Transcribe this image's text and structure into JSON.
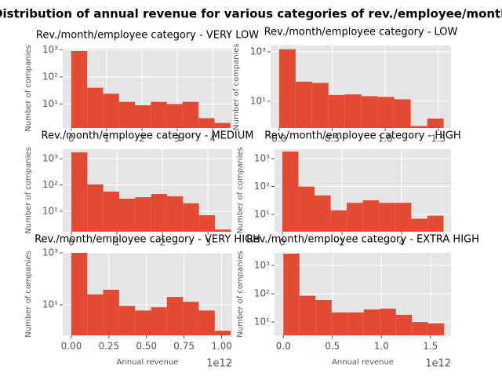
{
  "suptitle": "Distribution of annual revenue for various categories of rev./employee/month",
  "chart_data": [
    {
      "type": "histogram",
      "title": "Rev./month/employee category - VERY LOW",
      "color": "#e24a33",
      "grid": true,
      "log_y": true,
      "ylabel": "Number of companies",
      "bins": [
        0,
        0.45,
        0.9,
        1.35,
        1.8,
        2.25,
        2.7,
        3.15,
        3.6,
        4.05,
        4.5
      ],
      "values": [
        900,
        40,
        24,
        12,
        9,
        12,
        10,
        12,
        3,
        2
      ],
      "xlim": [
        -0.24,
        4.55
      ],
      "xticks": [
        0,
        1,
        2,
        3,
        4
      ],
      "ylim": [
        1.3,
        1100
      ],
      "yticks": [
        {
          "value": 10,
          "label": "10¹"
        },
        {
          "value": 100,
          "label": "10²"
        },
        {
          "value": 1000,
          "label": "10³"
        }
      ]
    },
    {
      "type": "histogram",
      "title": "Rev./month/employee category - LOW",
      "color": "#e24a33",
      "grid": true,
      "log_y": true,
      "ylabel": "Number of companies",
      "bins": [
        0,
        0.155,
        0.31,
        0.465,
        0.62,
        0.775,
        0.93,
        1.085,
        1.24,
        1.395,
        1.55
      ],
      "values": [
        1260,
        62,
        55,
        18,
        19,
        16,
        15,
        12,
        1,
        2
      ],
      "xlim": [
        -0.08,
        1.62
      ],
      "xticks": [
        {
          "value": 0,
          "label": "0.0"
        },
        0.5,
        {
          "value": 1,
          "label": "1.0"
        },
        1.5
      ],
      "ylim": [
        0.83,
        1780
      ],
      "yticks": [
        {
          "value": 10,
          "label": "10¹"
        },
        {
          "value": 1000,
          "label": "10³"
        }
      ]
    },
    {
      "type": "histogram",
      "title": "Rev./month/employee category - MEDIUM",
      "color": "#e24a33",
      "grid": true,
      "log_y": true,
      "ylabel": "Number of companies",
      "bins": [
        0,
        0.35,
        0.7,
        1.05,
        1.4,
        1.75,
        2.1,
        2.45,
        2.8,
        3.15,
        3.5
      ],
      "values": [
        1740,
        105,
        56,
        30,
        34,
        45,
        37,
        20,
        7,
        2
      ],
      "xlim": [
        -0.19,
        3.53
      ],
      "xticks": [
        0,
        1,
        2,
        3
      ],
      "ylim": [
        1.66,
        2290
      ],
      "yticks": [
        {
          "value": 10,
          "label": "10¹"
        },
        {
          "value": 100,
          "label": "10²"
        },
        {
          "value": 1000,
          "label": "10³"
        }
      ]
    },
    {
      "type": "histogram",
      "title": "Rev./month/employee category - HIGH",
      "color": "#e24a33",
      "grid": true,
      "log_y": true,
      "ylabel": "Number of companies",
      "bins": [
        0,
        0.54,
        1.08,
        1.62,
        2.16,
        2.7,
        3.24,
        3.78,
        4.32,
        4.86,
        5.4
      ],
      "values": [
        1800,
        100,
        48,
        14,
        26,
        32,
        26,
        26,
        7,
        9
      ],
      "xlim": [
        -0.26,
        5.65
      ],
      "xticks": [
        0,
        2,
        4
      ],
      "ylim": [
        2.4,
        2180
      ],
      "yticks": [
        {
          "value": 10,
          "label": "10¹"
        },
        {
          "value": 100,
          "label": "10²"
        },
        {
          "value": 1000,
          "label": "10³"
        }
      ]
    },
    {
      "type": "histogram",
      "title": "Rev./month/employee category - VERY HIGH",
      "color": "#e24a33",
      "grid": true,
      "log_y": true,
      "ylabel": "Number of companies",
      "xlabel": "Annual revenue",
      "x_offset": "1e12",
      "bins": [
        0,
        0.106,
        0.212,
        0.318,
        0.424,
        0.53,
        0.636,
        0.742,
        0.848,
        0.954,
        1.06
      ],
      "values": [
        1000,
        25,
        38,
        9,
        6,
        8,
        20,
        13,
        6,
        1
      ],
      "xlim": [
        -0.057,
        1.07
      ],
      "xticks": [
        {
          "value": 0,
          "label": "0.00"
        },
        0.25,
        {
          "value": 0.5,
          "label": "0.50"
        },
        0.75,
        {
          "value": 1,
          "label": "1.00"
        }
      ],
      "ylim": [
        0.66,
        1000
      ],
      "yticks": [
        {
          "value": 10,
          "label": "10¹"
        },
        {
          "value": 1000,
          "label": "10³"
        }
      ]
    },
    {
      "type": "histogram",
      "title": "Rev./month/employee category - EXTRA HIGH",
      "color": "#e24a33",
      "grid": true,
      "log_y": true,
      "ylabel": "Number of companies",
      "xlabel": "Annual revenue",
      "x_offset": "1e12",
      "bins": [
        0,
        0.164,
        0.328,
        0.492,
        0.656,
        0.82,
        0.984,
        1.148,
        1.312,
        1.476,
        1.64
      ],
      "values": [
        2600,
        85,
        60,
        22,
        22,
        28,
        30,
        18,
        10,
        9
      ],
      "xlim": [
        -0.09,
        1.71
      ],
      "xticks": [
        {
          "value": 0,
          "label": "0.0"
        },
        0.5,
        {
          "value": 1,
          "label": "1.0"
        },
        1.5
      ],
      "ylim": [
        3.4,
        2780
      ],
      "yticks": [
        {
          "value": 10,
          "label": "10¹"
        },
        {
          "value": 100,
          "label": "10²"
        },
        {
          "value": 1000,
          "label": "10³"
        }
      ]
    }
  ]
}
